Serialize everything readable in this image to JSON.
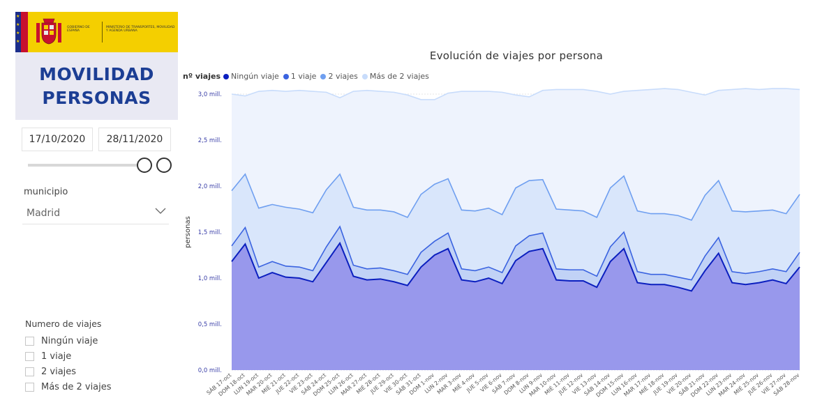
{
  "header": {
    "gov_line1": "GOBIERNO DE ESPAÑA",
    "gov_line2": "MINISTERIO DE TRANSPORTES, MOVILIDAD Y AGENDA URBANA",
    "title": "MOVILIDAD\nPERSONAS"
  },
  "date_filter": {
    "start": "17/10/2020",
    "end": "28/11/2020"
  },
  "municipio": {
    "label": "municipio",
    "value": "Madrid"
  },
  "viajes_filter": {
    "title": "Numero de viajes",
    "options": [
      "Ningún viaje",
      "1 viaje",
      "2 viajes",
      "Más de 2 viajes"
    ]
  },
  "colors": {
    "accent": "#1c3e94",
    "series0": "#0b1fbf",
    "series1": "#3a63e0",
    "series2": "#6f9ff0",
    "series3": "#c8dcfb"
  },
  "chart_data": {
    "type": "area",
    "stacked": true,
    "title": "Evolución de viajes por persona",
    "ylabel": "personas",
    "legend_title": "nº viajes",
    "legend_placement": "top-left",
    "grid": true,
    "ylim": [
      0,
      3.0
    ],
    "y_ticks": [
      "0,0 mill.",
      "0,5 mill.",
      "1,0 mill.",
      "1,5 mill.",
      "2,0 mill.",
      "2,5 mill.",
      "3,0 mill."
    ],
    "categories": [
      "SÁB 17-oct",
      "DOM 18-oct",
      "LUN 19-oct",
      "MAR 20-oct",
      "MIÉ 21-oct",
      "JUE 22-oct",
      "VIE 23-oct",
      "SÁB 24-oct",
      "DOM 25-oct",
      "LUN 26-oct",
      "MAR 27-oct",
      "MIÉ 28-oct",
      "JUE 29-oct",
      "VIE 30-oct",
      "SÁB 31-oct",
      "DOM 1-nov",
      "LUN 2-nov",
      "MAR 3-nov",
      "MIÉ 4-nov",
      "JUE 5-nov",
      "VIE 6-nov",
      "SÁB 7-nov",
      "DOM 8-nov",
      "LUN 9-nov",
      "MAR 10-nov",
      "MIÉ 11-nov",
      "JUE 12-nov",
      "VIE 13-nov",
      "SÁB 14-nov",
      "DOM 15-nov",
      "LUN 16-nov",
      "MAR 17-nov",
      "MIÉ 18-nov",
      "JUE 19-nov",
      "VIE 20-nov",
      "SÁB 21-nov",
      "DOM 22-nov",
      "LUN 23-nov",
      "MAR 24-nov",
      "MIÉ 25-nov",
      "JUE 26-nov",
      "VIE 27-nov",
      "SÁB 28-nov"
    ],
    "series": [
      {
        "name": "Ningún viaje",
        "color": "#0b1fbf",
        "cumulative": [
          1.18,
          1.37,
          1.0,
          1.06,
          1.01,
          1.0,
          0.96,
          1.17,
          1.38,
          1.02,
          0.98,
          0.99,
          0.96,
          0.92,
          1.12,
          1.25,
          1.32,
          0.98,
          0.96,
          1.0,
          0.94,
          1.19,
          1.29,
          1.32,
          0.98,
          0.97,
          0.97,
          0.9,
          1.18,
          1.32,
          0.95,
          0.93,
          0.93,
          0.9,
          0.86,
          1.08,
          1.27,
          0.95,
          0.93,
          0.95,
          0.98,
          0.94,
          1.12
        ]
      },
      {
        "name": "1 viaje",
        "color": "#3a63e0",
        "cumulative": [
          1.35,
          1.55,
          1.12,
          1.18,
          1.13,
          1.12,
          1.08,
          1.34,
          1.56,
          1.14,
          1.1,
          1.11,
          1.08,
          1.04,
          1.28,
          1.4,
          1.49,
          1.1,
          1.08,
          1.12,
          1.06,
          1.35,
          1.46,
          1.49,
          1.1,
          1.09,
          1.09,
          1.02,
          1.34,
          1.5,
          1.07,
          1.04,
          1.04,
          1.01,
          0.98,
          1.24,
          1.44,
          1.07,
          1.05,
          1.07,
          1.1,
          1.07,
          1.28
        ]
      },
      {
        "name": "2 viajes",
        "color": "#6f9ff0",
        "cumulative": [
          1.95,
          2.13,
          1.76,
          1.8,
          1.77,
          1.75,
          1.71,
          1.96,
          2.13,
          1.77,
          1.74,
          1.74,
          1.72,
          1.66,
          1.91,
          2.02,
          2.08,
          1.74,
          1.73,
          1.76,
          1.69,
          1.98,
          2.06,
          2.07,
          1.75,
          1.74,
          1.73,
          1.66,
          1.98,
          2.11,
          1.73,
          1.7,
          1.7,
          1.68,
          1.63,
          1.9,
          2.06,
          1.73,
          1.72,
          1.73,
          1.74,
          1.7,
          1.91
        ]
      },
      {
        "name": "Más de 2 viajes",
        "color": "#c8dcfb",
        "cumulative": [
          3.0,
          2.98,
          3.03,
          3.04,
          3.03,
          3.04,
          3.03,
          3.02,
          2.96,
          3.03,
          3.04,
          3.03,
          3.02,
          2.99,
          2.94,
          2.94,
          3.01,
          3.03,
          3.03,
          3.03,
          3.02,
          2.99,
          2.97,
          3.04,
          3.05,
          3.05,
          3.05,
          3.03,
          3.0,
          3.03,
          3.04,
          3.05,
          3.06,
          3.05,
          3.02,
          2.99,
          3.04,
          3.05,
          3.06,
          3.05,
          3.06,
          3.06,
          3.05
        ]
      }
    ]
  }
}
